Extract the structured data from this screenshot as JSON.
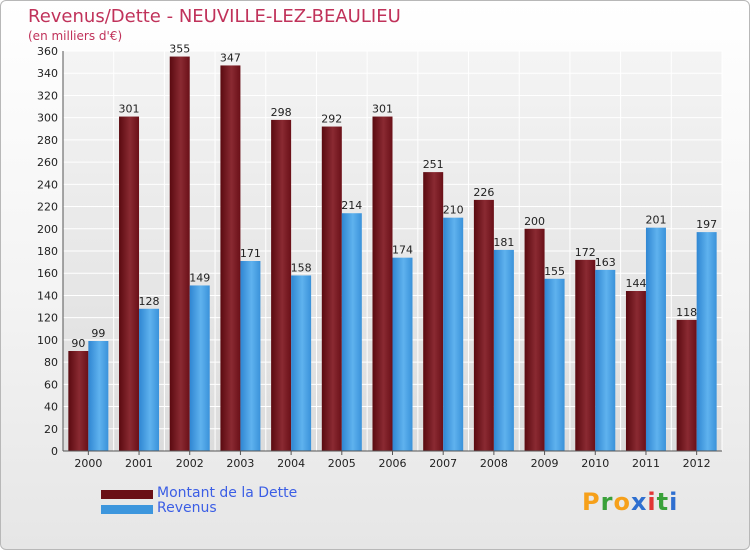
{
  "title": "Revenus/Dette - NEUVILLE-LEZ-BEAULIEU",
  "subtitle": "(en milliers d'€)",
  "logo": {
    "letters": [
      "P",
      "r",
      "o",
      "x",
      "i",
      "t",
      "i"
    ],
    "colors": [
      "#f6a01a",
      "#3aa13a",
      "#f6a01a",
      "#2e6fd0",
      "#e23636",
      "#3aa13a",
      "#2e6fd0"
    ]
  },
  "chart_data": {
    "type": "bar",
    "categories": [
      "2000",
      "2001",
      "2002",
      "2003",
      "2004",
      "2005",
      "2006",
      "2007",
      "2008",
      "2009",
      "2010",
      "2011",
      "2012"
    ],
    "series": [
      {
        "name": "Montant de la Dette",
        "values": [
          90,
          301,
          355,
          347,
          298,
          292,
          301,
          251,
          226,
          200,
          172,
          144,
          118
        ],
        "color": "#7a1a22"
      },
      {
        "name": "Revenus",
        "values": [
          99,
          128,
          149,
          171,
          158,
          214,
          174,
          210,
          181,
          155,
          163,
          201,
          197
        ],
        "color": "#3d96dd"
      }
    ],
    "ylim": [
      0,
      360
    ],
    "yticks": [
      0,
      20,
      40,
      60,
      80,
      100,
      120,
      140,
      160,
      180,
      200,
      220,
      240,
      260,
      280,
      300,
      320,
      340,
      360
    ],
    "grid": true,
    "legend_position": "bottom-left"
  }
}
